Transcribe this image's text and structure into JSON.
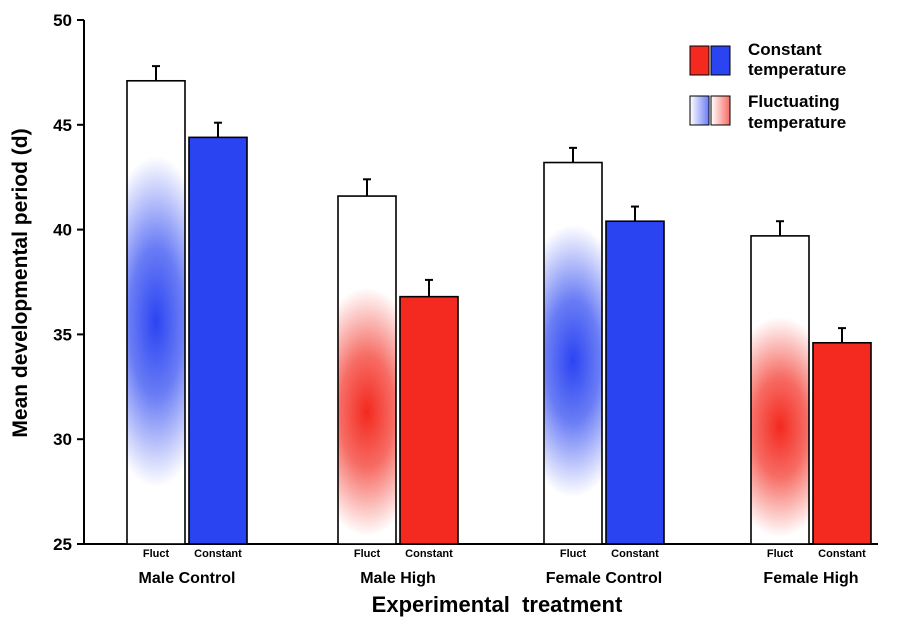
{
  "chart_data": {
    "type": "bar",
    "title": "",
    "xlabel": "Experimental  treatment",
    "ylabel": "Mean developmental period (d)",
    "ylim": [
      25,
      50
    ],
    "yticks": [
      25,
      30,
      35,
      40,
      45,
      50
    ],
    "grid": false,
    "legend_position": "top-right",
    "legend": [
      {
        "label_line1": "Constant",
        "label_line2": "temperature",
        "style": "solid"
      },
      {
        "label_line1": "Fluctuating",
        "label_line2": "temperature",
        "style": "gradient"
      }
    ],
    "groups": [
      {
        "name": "Male Control",
        "color": "#2b44f2",
        "bars": [
          {
            "label": "Fluct",
            "treatment": "fluctuating",
            "value": 47.1,
            "error": 0.7
          },
          {
            "label": "Constant",
            "treatment": "constant",
            "value": 44.4,
            "error": 0.7
          }
        ]
      },
      {
        "name": "Male High",
        "color": "#f4291f",
        "bars": [
          {
            "label": "Fluct",
            "treatment": "fluctuating",
            "value": 41.6,
            "error": 0.8
          },
          {
            "label": "Constant",
            "treatment": "constant",
            "value": 36.8,
            "error": 0.8
          }
        ]
      },
      {
        "name": "Female Control",
        "color": "#2b44f2",
        "bars": [
          {
            "label": "Fluct",
            "treatment": "fluctuating",
            "value": 43.2,
            "error": 0.7
          },
          {
            "label": "Constant",
            "treatment": "constant",
            "value": 40.4,
            "error": 0.7
          }
        ]
      },
      {
        "name": "Female High",
        "color": "#f4291f",
        "bars": [
          {
            "label": "Fluct",
            "treatment": "fluctuating",
            "value": 39.7,
            "error": 0.7
          },
          {
            "label": "Constant",
            "treatment": "constant",
            "value": 34.6,
            "error": 0.7
          }
        ]
      }
    ],
    "colors": {
      "blue": "#2b44f2",
      "red": "#f4291f"
    }
  }
}
